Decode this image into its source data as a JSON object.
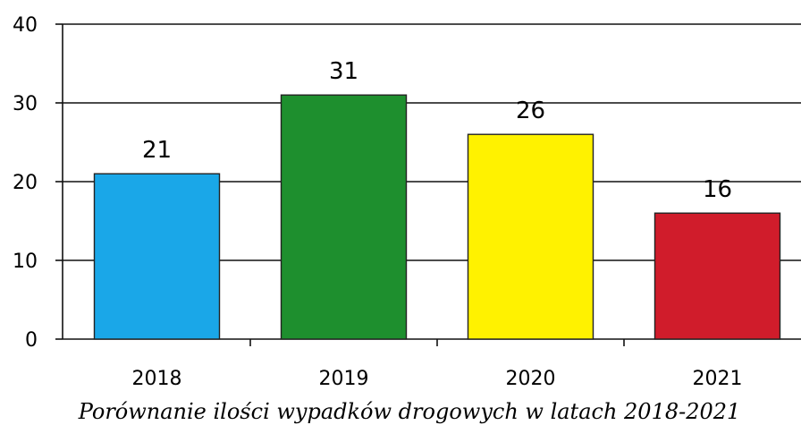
{
  "chart_data": {
    "type": "bar",
    "caption": "Porównanie ilości wypadków drogowych w latach 2018-2021",
    "categories": [
      "2018",
      "2019",
      "2020",
      "2021"
    ],
    "values": [
      21,
      31,
      26,
      16
    ],
    "ylim": [
      0,
      40
    ],
    "yticks": [
      0,
      10,
      20,
      30,
      40
    ],
    "grid": true,
    "colors": [
      "#1aa7e8",
      "#1e8f2e",
      "#fff200",
      "#d01c2b"
    ]
  }
}
